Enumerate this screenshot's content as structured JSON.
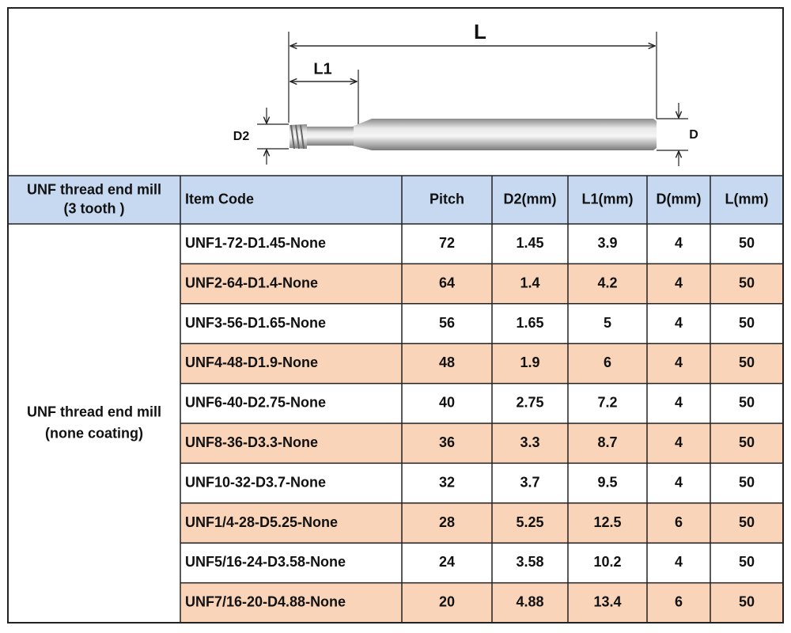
{
  "diagram": {
    "labels": {
      "L": "L",
      "L1": "L1",
      "D2": "D2",
      "D": "D"
    }
  },
  "table": {
    "header": [
      [
        "UNF thread end mill",
        "(3 tooth )"
      ],
      [
        "Item Code"
      ],
      [
        "Pitch"
      ],
      [
        "D2(mm)"
      ],
      [
        "L1(mm)"
      ],
      [
        "D(mm)"
      ],
      [
        "L(mm)"
      ]
    ],
    "group_label": [
      "UNF thread end mill",
      "(none coating)"
    ],
    "rows": [
      [
        "UNF1-72-D1.45-None",
        72,
        1.45,
        3.9,
        4,
        50
      ],
      [
        "UNF2-64-D1.4-None",
        64,
        1.4,
        4.2,
        4,
        50
      ],
      [
        "UNF3-56-D1.65-None",
        56,
        1.65,
        5,
        4,
        50
      ],
      [
        "UNF4-48-D1.9-None",
        48,
        1.9,
        6,
        4,
        50
      ],
      [
        "UNF6-40-D2.75-None",
        40,
        2.75,
        7.2,
        4,
        50
      ],
      [
        "UNF8-36-D3.3-None",
        36,
        3.3,
        8.7,
        4,
        50
      ],
      [
        "UNF10-32-D3.7-None",
        32,
        3.7,
        9.5,
        4,
        50
      ],
      [
        "UNF1/4-28-D5.25-None",
        28,
        5.25,
        12.5,
        6,
        50
      ],
      [
        "UNF5/16-24-D3.58-None",
        24,
        3.58,
        10.2,
        4,
        50
      ],
      [
        "UNF7/16-20-D4.88-None",
        20,
        4.88,
        13.4,
        6,
        50
      ]
    ]
  }
}
